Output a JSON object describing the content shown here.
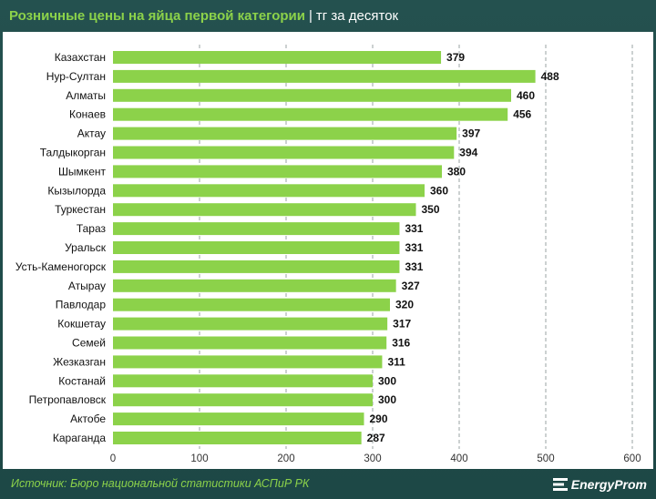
{
  "header": {
    "title": "Розничные цены на яйца первой категории",
    "separator": "|",
    "unit": "тг за десяток"
  },
  "footer": {
    "source": "Источник: Бюро национальной статистики АСПиР РК",
    "logo_text": "EnergyProm"
  },
  "colors": {
    "bar": "#8cd24a",
    "background": "#24514f",
    "accent": "#8cd24a"
  },
  "chart_data": {
    "type": "bar",
    "orientation": "horizontal",
    "categories": [
      "Казахстан",
      "Нур-Султан",
      "Алматы",
      "Конаев",
      "Актау",
      "Талдыкорган",
      "Шымкент",
      "Кызылорда",
      "Туркестан",
      "Тараз",
      "Уральск",
      "Усть-Каменогорск",
      "Атырау",
      "Павлодар",
      "Кокшетау",
      "Семей",
      "Жезказган",
      "Костанай",
      "Петропавловск",
      "Актобе",
      "Караганда"
    ],
    "values": [
      379,
      488,
      460,
      456,
      397,
      394,
      380,
      360,
      350,
      331,
      331,
      331,
      327,
      320,
      317,
      316,
      311,
      300,
      300,
      290,
      287
    ],
    "xlim": [
      0,
      600
    ],
    "xticks": [
      0,
      100,
      200,
      300,
      400,
      500,
      600
    ],
    "grid": true,
    "data_labels": true
  }
}
